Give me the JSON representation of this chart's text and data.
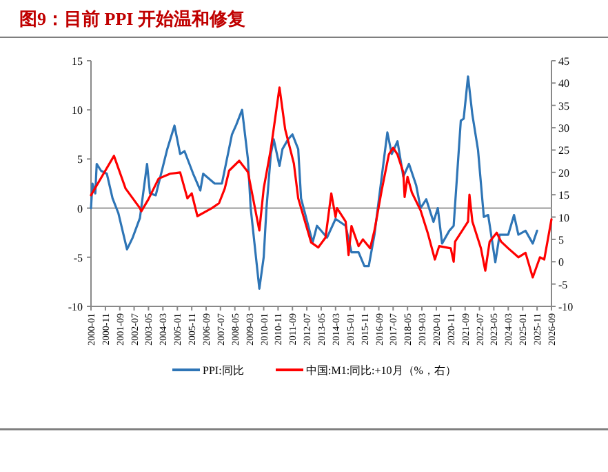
{
  "chart_data": {
    "type": "line",
    "title": "图9：目前 PPI 开始温和修复",
    "xlim": [
      "2000-01",
      "2026-09"
    ],
    "xticks": [
      "2000-01",
      "2000-11",
      "2001-09",
      "2002-07",
      "2003-05",
      "2004-03",
      "2005-01",
      "2005-11",
      "2006-09",
      "2007-07",
      "2008-05",
      "2009-03",
      "2010-01",
      "2010-11",
      "2011-09",
      "2012-07",
      "2013-05",
      "2014-03",
      "2015-01",
      "2015-11",
      "2016-09",
      "2017-07",
      "2018-05",
      "2019-03",
      "2020-01",
      "2020-11",
      "2021-09",
      "2022-07",
      "2023-05",
      "2024-03",
      "2025-01",
      "2025-11",
      "2026-09"
    ],
    "ylim": [
      -10,
      15
    ],
    "yticks": [
      -10,
      -5,
      0,
      5,
      10,
      15
    ],
    "y2lim": [
      -10,
      45
    ],
    "y2ticks": [
      -10,
      -5,
      0,
      5,
      10,
      15,
      20,
      25,
      30,
      35,
      40,
      45
    ],
    "ref_lines": [
      {
        "axis": "y",
        "value": 0,
        "color": "#a6a6a6"
      }
    ],
    "grid": false,
    "legend": "bottom",
    "line_style": "solid",
    "marker": "none",
    "series": [
      {
        "name": "PPI:同比",
        "color": "#2e75b6",
        "x": [
          "2000-01",
          "2000-02",
          "2000-04",
          "2000-05",
          "2000-08",
          "2000-12",
          "2001-04",
          "2001-08",
          "2002-02",
          "2002-06",
          "2002-11",
          "2003-04",
          "2003-06",
          "2003-10",
          "2004-06",
          "2004-11",
          "2005-03",
          "2005-06",
          "2005-12",
          "2006-05",
          "2006-07",
          "2007-03",
          "2007-08",
          "2008-03",
          "2008-06",
          "2008-10",
          "2009-02",
          "2009-04",
          "2009-10",
          "2010-01",
          "2010-03",
          "2010-06",
          "2010-08",
          "2010-12",
          "2011-02",
          "2011-06",
          "2011-09",
          "2012-01",
          "2012-03",
          "2012-11",
          "2013-02",
          "2013-09",
          "2014-03",
          "2014-10",
          "2015-02",
          "2015-07",
          "2015-11",
          "2016-02",
          "2016-06",
          "2017-01",
          "2017-03",
          "2017-06",
          "2017-10",
          "2018-02",
          "2018-06",
          "2018-11",
          "2019-02",
          "2019-06",
          "2019-11",
          "2020-02",
          "2020-05",
          "2020-10",
          "2021-01",
          "2021-06",
          "2021-08",
          "2021-11",
          "2022-02",
          "2022-06",
          "2022-10",
          "2023-01",
          "2023-06",
          "2023-09",
          "2024-03",
          "2024-07",
          "2024-10",
          "2025-03",
          "2025-08",
          "2025-11"
        ],
        "values": [
          0,
          2.5,
          1.5,
          4.5,
          3.8,
          3.5,
          1.0,
          -0.5,
          -4.2,
          -3.0,
          -1.0,
          4.5,
          1.5,
          1.3,
          6.0,
          8.4,
          5.5,
          5.8,
          3.5,
          1.8,
          3.5,
          2.5,
          2.5,
          7.5,
          8.5,
          10.0,
          5,
          0,
          -8.2,
          -5,
          0,
          5.5,
          7.0,
          4.3,
          6.0,
          7.0,
          7.5,
          6,
          1,
          -3.5,
          -1.8,
          -3.0,
          -1.1,
          -1.8,
          -4.5,
          -4.5,
          -5.9,
          -5.9,
          -2.7,
          5.5,
          7.7,
          5.5,
          6.8,
          3.2,
          4.5,
          2.3,
          0,
          0.9,
          -1.4,
          0,
          -3.6,
          -2.3,
          -1.8,
          8.9,
          9.1,
          13.4,
          9.5,
          5.9,
          -0.9,
          -0.7,
          -5.5,
          -2.7,
          -2.7,
          -0.7,
          -2.7,
          -2.3,
          -3.6,
          -2.3
        ]
      },
      {
        "name": "中国:M1:同比:+10月（%，右）",
        "color": "#ff0000",
        "axis": "y2",
        "x": [
          "2000-01",
          "2001-05",
          "2002-01",
          "2002-11",
          "2002-12",
          "2003-05",
          "2003-12",
          "2004-08",
          "2005-03",
          "2005-08",
          "2005-11",
          "2006-03",
          "2007-01",
          "2007-06",
          "2007-10",
          "2008-01",
          "2008-08",
          "2009-02",
          "2009-10",
          "2010-01",
          "2010-06",
          "2010-12",
          "2011-04",
          "2011-10",
          "2012-01",
          "2012-10",
          "2013-03",
          "2013-08",
          "2013-12",
          "2014-03",
          "2014-04",
          "2014-10",
          "2014-12",
          "2015-02",
          "2015-07",
          "2015-10",
          "2016-03",
          "2016-06",
          "2016-11",
          "2017-04",
          "2017-07",
          "2017-10",
          "2018-02",
          "2018-03",
          "2018-05",
          "2018-08",
          "2019-02",
          "2019-07",
          "2019-12",
          "2020-03",
          "2020-11",
          "2021-01",
          "2021-02",
          "2021-11",
          "2021-12",
          "2022-02",
          "2022-08",
          "2022-11",
          "2023-02",
          "2023-07",
          "2023-10",
          "2024-03",
          "2024-10",
          "2025-03",
          "2025-08",
          "2026-01",
          "2026-04",
          "2026-09"
        ],
        "values": [
          14.9,
          23.7,
          16.4,
          12,
          11.3,
          14,
          18.6,
          19.7,
          20,
          14.2,
          15.3,
          10.2,
          12,
          13.1,
          16.4,
          20.4,
          22.6,
          20.1,
          7,
          16.4,
          25.2,
          39,
          29.6,
          22,
          14.2,
          4.3,
          3.2,
          5.4,
          15.3,
          10,
          12,
          9,
          1.5,
          8,
          3.5,
          5,
          3,
          7,
          16,
          24,
          25.5,
          24,
          20,
          14.5,
          19,
          15.5,
          11.5,
          6.5,
          0.5,
          3.5,
          3,
          0,
          4.5,
          9,
          15,
          9,
          3,
          -2,
          4.5,
          6.5,
          4.5,
          3,
          1,
          2,
          -3.5,
          1,
          0.5,
          9.5
        ]
      }
    ]
  }
}
